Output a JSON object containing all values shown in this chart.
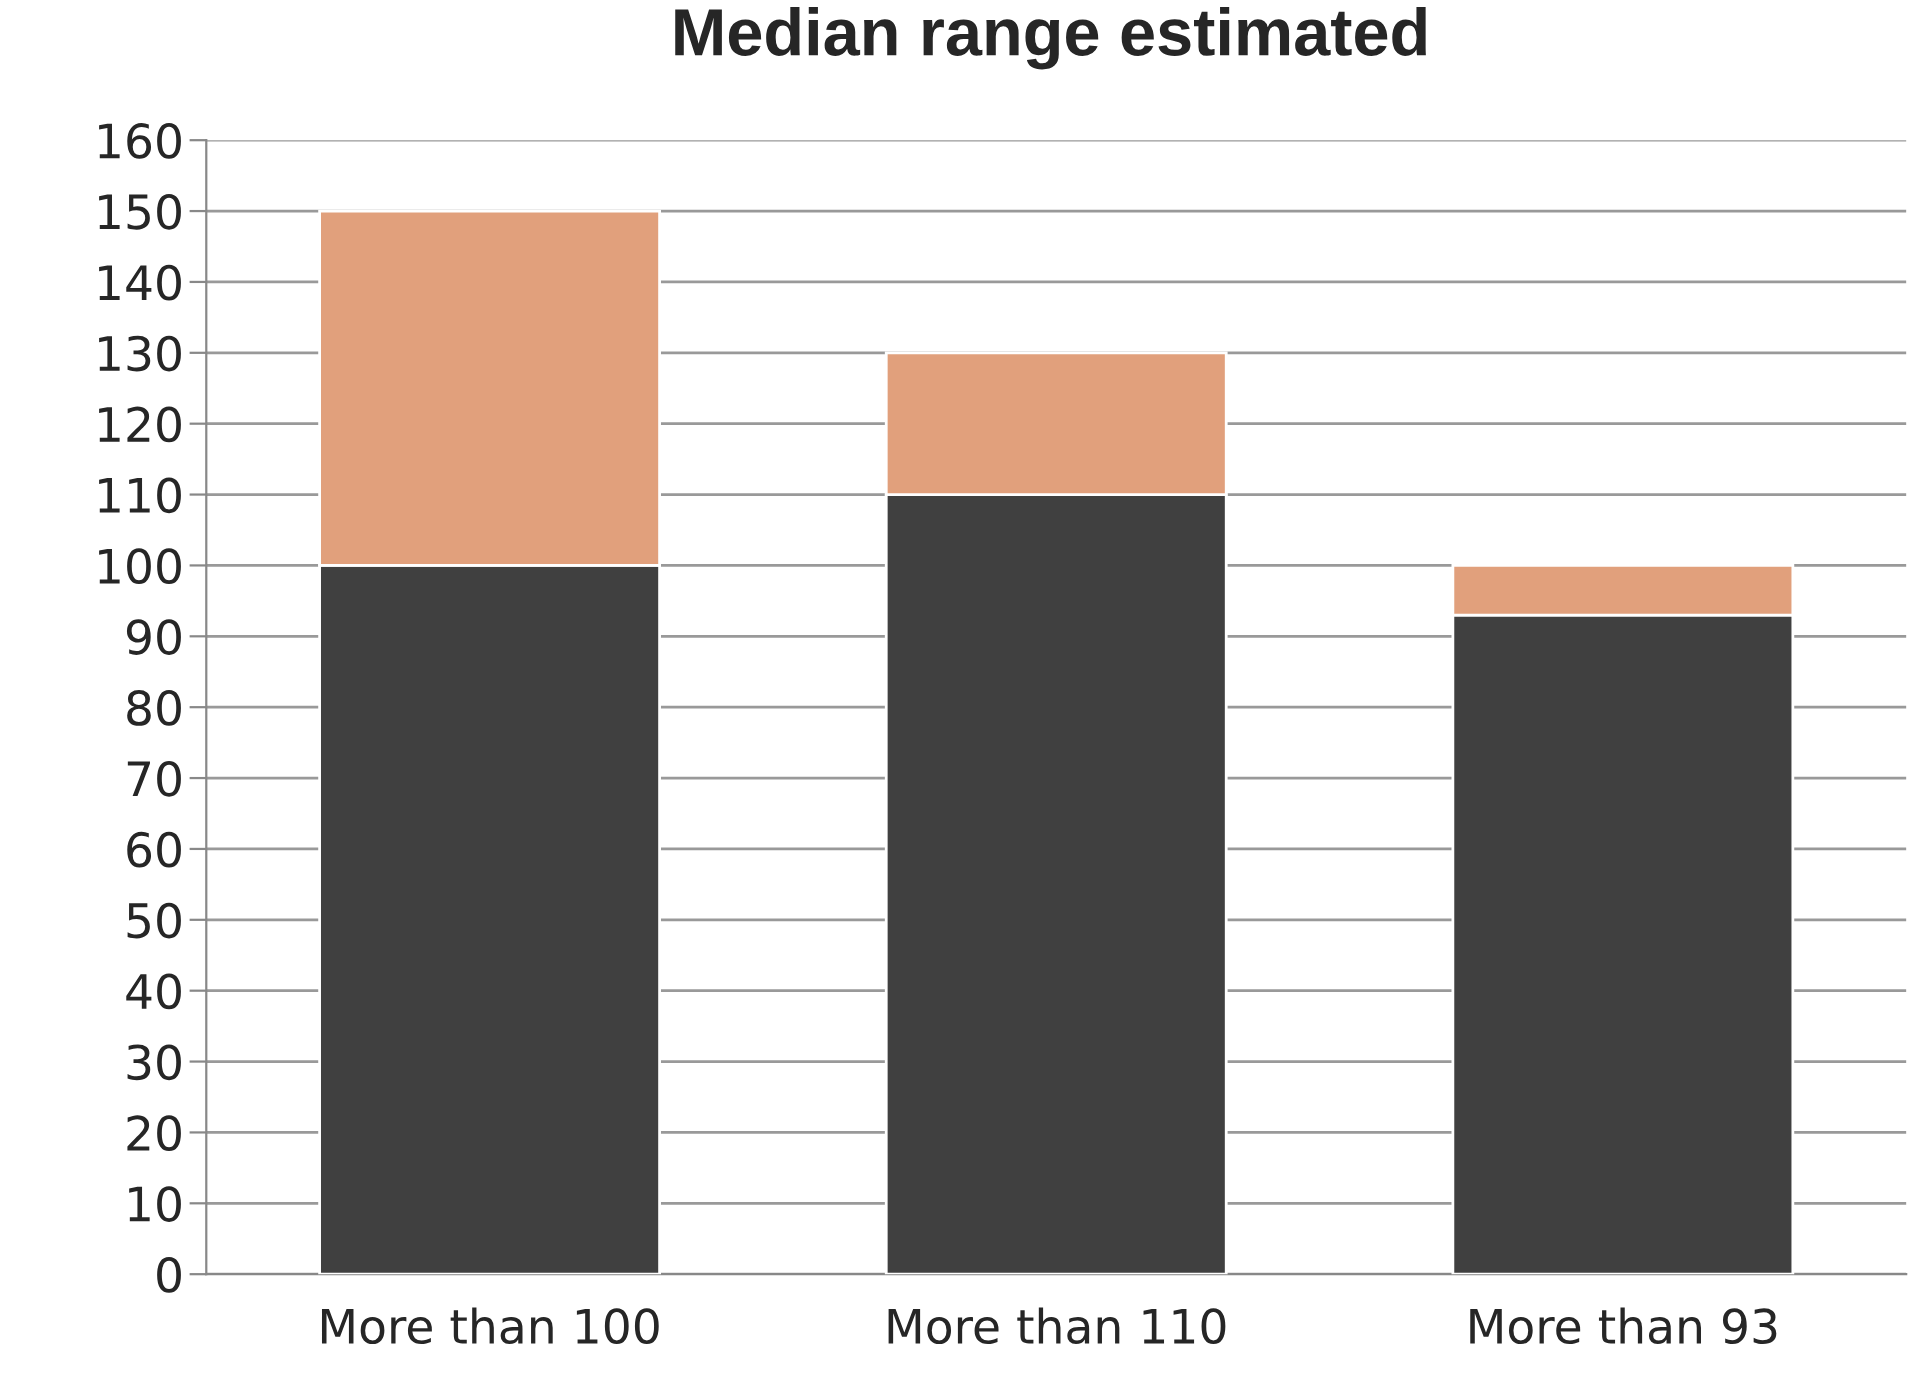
{
  "chart_data": {
    "type": "bar",
    "title": "Median range estimated",
    "categories": [
      "More than 100",
      "More than 110",
      "More than 93"
    ],
    "stacked": true,
    "series": [
      {
        "color": "#404040",
        "values": [
          100,
          110,
          93
        ]
      },
      {
        "color": "#e1a07c",
        "values": [
          50,
          20,
          7
        ]
      }
    ],
    "ylim": [
      0,
      160
    ],
    "yticks": [
      0,
      10,
      20,
      30,
      40,
      50,
      60,
      70,
      80,
      90,
      100,
      110,
      120,
      130,
      140,
      150,
      160
    ],
    "grid": "y",
    "legend": false
  }
}
